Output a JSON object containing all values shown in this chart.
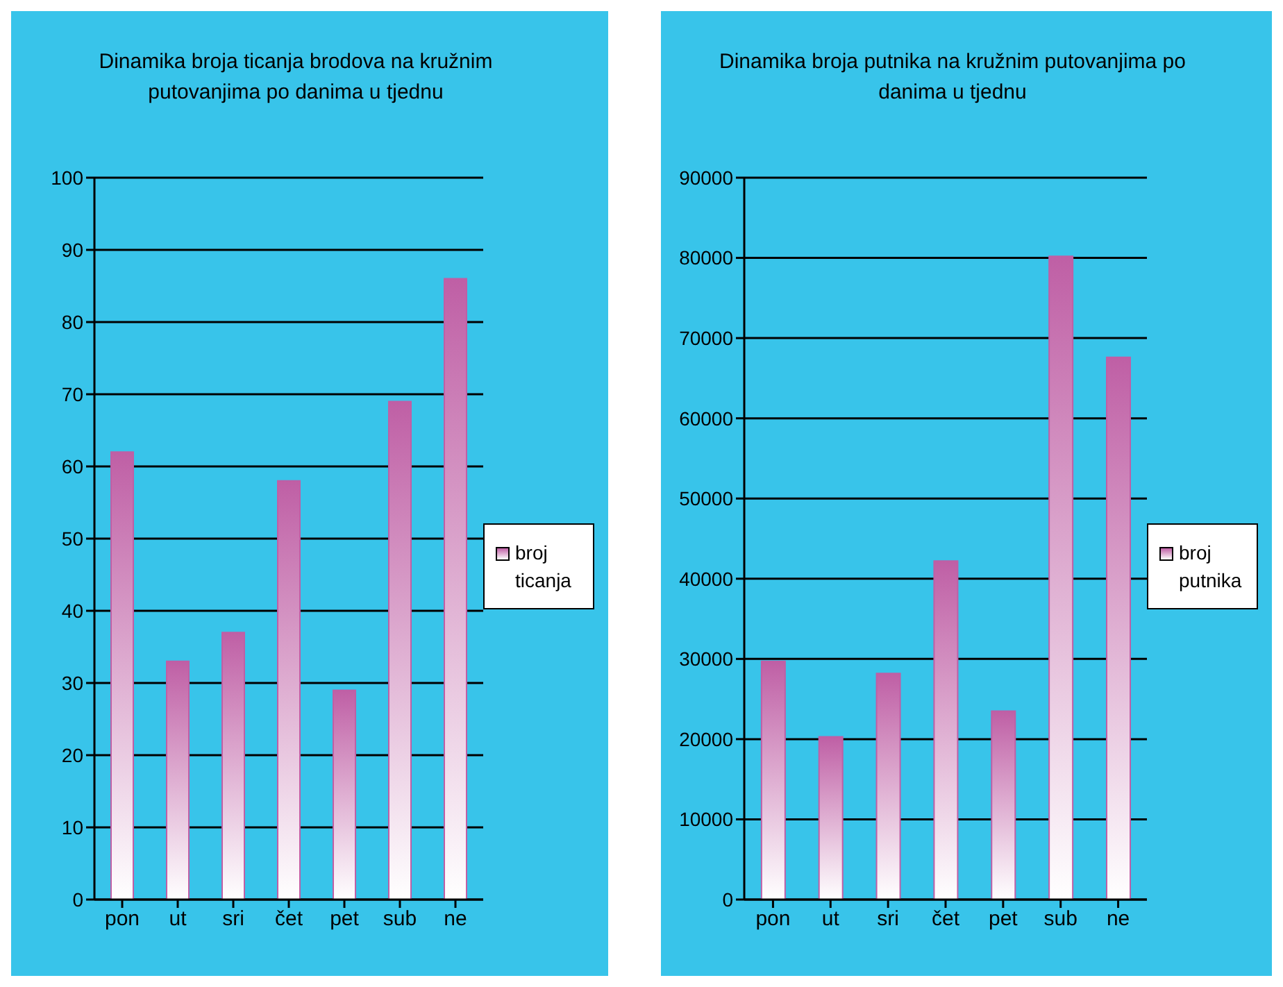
{
  "chart_data": [
    {
      "type": "bar",
      "title": "Dinamika broja ticanja brodova na kružnim putovanjima po danima u tjednu",
      "categories": [
        "pon",
        "ut",
        "sri",
        "čet",
        "pet",
        "sub",
        "ne"
      ],
      "series": [
        {
          "name": "broj ticanja",
          "color": "#bf5fa5",
          "values": [
            62,
            33,
            37,
            58,
            29,
            69,
            86
          ]
        }
      ],
      "ylim": [
        0,
        100
      ],
      "yticks": [
        0,
        10,
        20,
        30,
        40,
        50,
        60,
        70,
        80,
        90,
        100
      ],
      "grid": "y",
      "legend": "right"
    },
    {
      "type": "bar",
      "title": "Dinamika broja putnika na kružnim putovanjima po danima u tjednu",
      "categories": [
        "pon",
        "ut",
        "sri",
        "čet",
        "pet",
        "sub",
        "ne"
      ],
      "series": [
        {
          "name": "broj putnika",
          "color": "#bf5fa5",
          "values": [
            29700,
            20300,
            28200,
            42200,
            23500,
            80200,
            67600
          ]
        }
      ],
      "ylim": [
        0,
        90000
      ],
      "yticks": [
        0,
        10000,
        20000,
        30000,
        40000,
        50000,
        60000,
        70000,
        80000,
        90000
      ],
      "grid": "y",
      "legend": "right"
    }
  ]
}
